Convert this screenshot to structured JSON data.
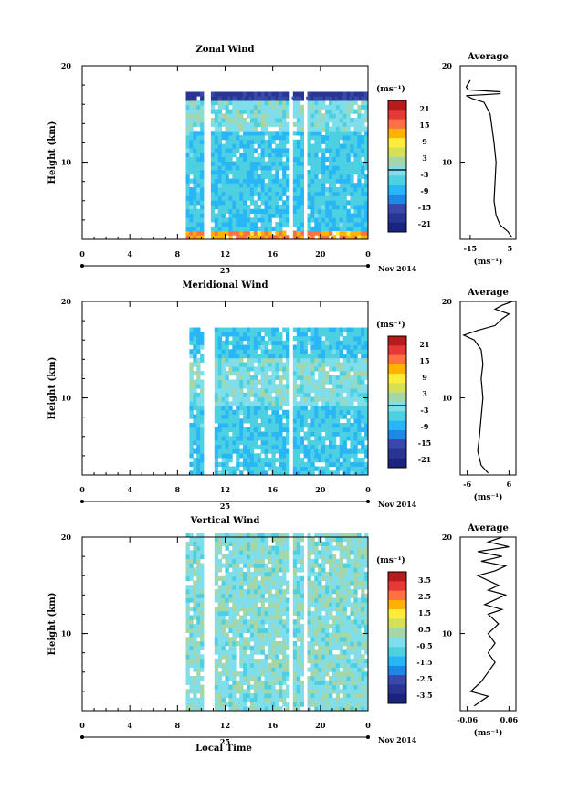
{
  "figure": {
    "date_label": "Nov 2014",
    "day_label": "25",
    "xlabel": "Local Time",
    "ylabel": "Height (km)",
    "x_ticks": [
      "0",
      "4",
      "8",
      "12",
      "16",
      "20",
      "0"
    ],
    "y_ticks": [
      "20",
      "10"
    ],
    "average_title": "Average",
    "unit": "(ms⁻¹)"
  },
  "chart_data": [
    {
      "type": "heatmap",
      "title": "Zonal Wind",
      "xlabel": "",
      "ylabel": "Height (km)",
      "xlim": [
        0,
        24
      ],
      "ylim": [
        2,
        20
      ],
      "data_start_hour": 8.7,
      "gaps_hours": [
        [
          10.0,
          10.7
        ],
        [
          17.4,
          17.7
        ],
        [
          18.6,
          18.9
        ]
      ],
      "data_top_km": 17,
      "colorbar": {
        "ticks": [
          "21",
          "15",
          "9",
          "3",
          "-3",
          "-9",
          "-15",
          "-21"
        ],
        "zero_contour": true
      },
      "profile": {
        "title": "Average",
        "x_ticks": [
          "-15",
          "5"
        ],
        "xlim": [
          -20,
          8
        ],
        "y_ticks": [
          "20",
          "10"
        ],
        "points": [
          [
            6,
            2.2
          ],
          [
            4,
            2.8
          ],
          [
            0,
            3.5
          ],
          [
            -2,
            4.5
          ],
          [
            -3,
            6
          ],
          [
            -2.5,
            8
          ],
          [
            -2,
            10
          ],
          [
            -3,
            12
          ],
          [
            -4,
            13.5
          ],
          [
            -5,
            15
          ],
          [
            -8,
            16.2
          ],
          [
            -14,
            16.6
          ],
          [
            -17,
            16.9
          ],
          [
            -8,
            17.0
          ],
          [
            0,
            17.1
          ],
          [
            0,
            17.3
          ],
          [
            -16,
            17.5
          ],
          [
            -17,
            17.8
          ],
          [
            -15,
            18.5
          ]
        ]
      }
    },
    {
      "type": "heatmap",
      "title": "Meridional Wind",
      "xlabel": "",
      "ylabel": "Height (km)",
      "xlim": [
        0,
        24
      ],
      "ylim": [
        2,
        20
      ],
      "data_start_hour": 9.0,
      "gaps_hours": [
        [
          10.2,
          10.9
        ],
        [
          17.4,
          17.7
        ]
      ],
      "data_top_km": 17,
      "colorbar": {
        "ticks": [
          "21",
          "15",
          "9",
          "3",
          "-3",
          "-9",
          "-15",
          "-21"
        ],
        "zero_contour": true
      },
      "profile": {
        "title": "Average",
        "x_ticks": [
          "-6",
          "6"
        ],
        "xlim": [
          -8,
          8
        ],
        "y_ticks": [
          "20",
          "10"
        ],
        "points": [
          [
            0,
            2.2
          ],
          [
            -2,
            3
          ],
          [
            -3,
            4.5
          ],
          [
            -2.5,
            6
          ],
          [
            -2,
            8
          ],
          [
            -1.5,
            10
          ],
          [
            -2,
            12
          ],
          [
            -1.5,
            13.5
          ],
          [
            -2,
            15
          ],
          [
            -4,
            16
          ],
          [
            -7,
            16.5
          ],
          [
            -3,
            17
          ],
          [
            2,
            17.5
          ],
          [
            4,
            18.2
          ],
          [
            6,
            18.7
          ],
          [
            2,
            19.2
          ],
          [
            4,
            19.6
          ],
          [
            7,
            20
          ]
        ]
      }
    },
    {
      "type": "heatmap",
      "title": "Vertical Wind",
      "xlabel": "Local Time",
      "ylabel": "Height (km)",
      "xlim": [
        0,
        24
      ],
      "ylim": [
        2,
        20
      ],
      "data_start_hour": 8.7,
      "gaps_hours": [
        [
          10.0,
          10.9
        ],
        [
          17.4,
          17.7
        ],
        [
          18.6,
          18.9
        ]
      ],
      "data_top_km": 20,
      "colorbar": {
        "ticks": [
          "3.5",
          "2.5",
          "1.5",
          "0.5",
          "-0.5",
          "-1.5",
          "-2.5",
          "-3.5"
        ],
        "zero_contour": false
      },
      "profile": {
        "title": "Average",
        "x_ticks": [
          "-0.06",
          "0.06"
        ],
        "xlim": [
          -0.08,
          0.08
        ],
        "y_ticks": [
          "20",
          "10"
        ],
        "points": [
          [
            -0.04,
            2.5
          ],
          [
            0.0,
            3.5
          ],
          [
            -0.05,
            4.0
          ],
          [
            -0.02,
            5.0
          ],
          [
            0.0,
            6
          ],
          [
            0.02,
            7
          ],
          [
            0.0,
            8
          ],
          [
            0.02,
            9
          ],
          [
            0.0,
            10
          ],
          [
            0.03,
            11
          ],
          [
            0.0,
            12
          ],
          [
            0.04,
            12.5
          ],
          [
            -0.01,
            13
          ],
          [
            0.05,
            14
          ],
          [
            0.0,
            14.5
          ],
          [
            0.03,
            15
          ],
          [
            -0.03,
            16
          ],
          [
            0.02,
            16.5
          ],
          [
            0.05,
            17
          ],
          [
            -0.02,
            17.5
          ],
          [
            0.04,
            18
          ],
          [
            -0.03,
            18.5
          ],
          [
            0.06,
            19
          ],
          [
            0.0,
            19.5
          ],
          [
            0.04,
            20
          ]
        ]
      }
    }
  ]
}
